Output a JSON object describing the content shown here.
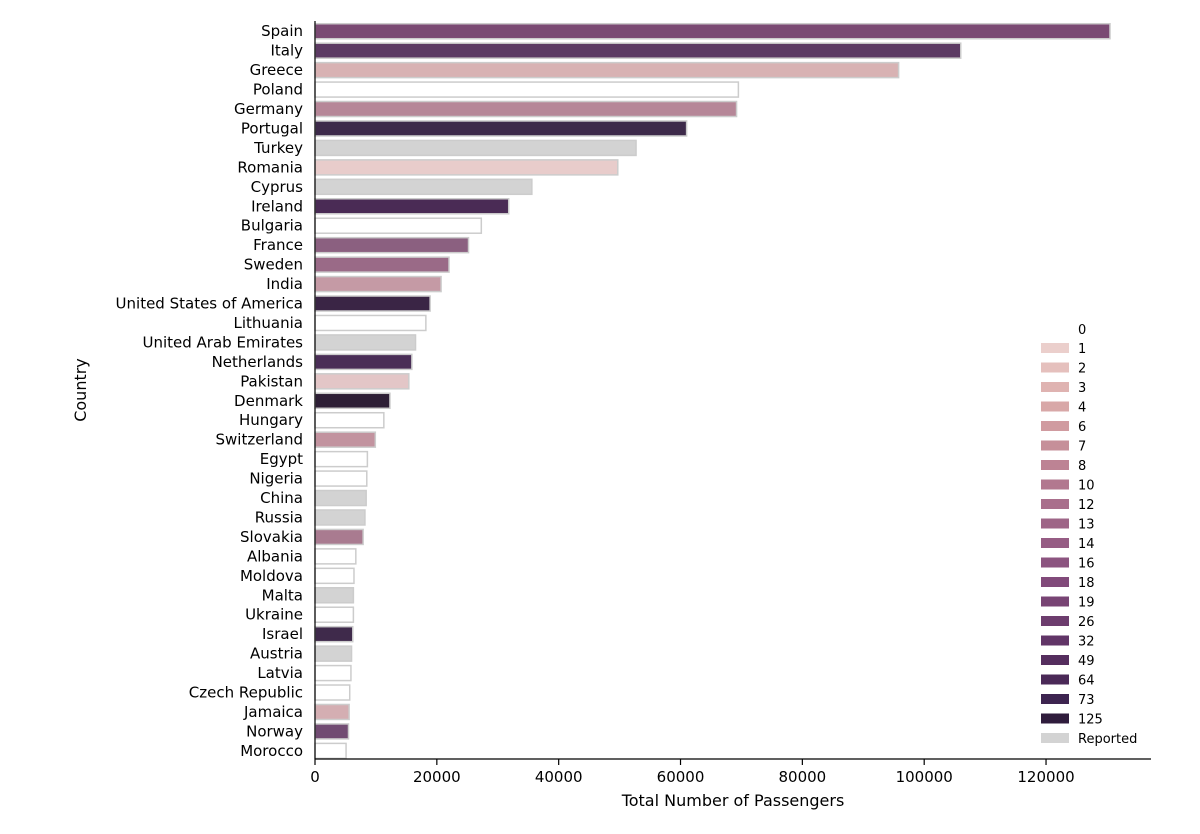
{
  "chart_data": {
    "type": "bar",
    "orientation": "horizontal",
    "xlabel": "Total Number of Passengers",
    "ylabel": "Country",
    "xlim": [
      0,
      137000
    ],
    "xticks": [
      0,
      20000,
      40000,
      60000,
      80000,
      100000,
      120000
    ],
    "grid": false,
    "legend_position": "lower-right",
    "legend_title": "0",
    "reported_color": "#d3d3d3",
    "legend": [
      {
        "label": "1",
        "color": "#ebcfcc"
      },
      {
        "label": "2",
        "color": "#e5c0bd"
      },
      {
        "label": "3",
        "color": "#dfb3b1"
      },
      {
        "label": "4",
        "color": "#d8a8a8"
      },
      {
        "label": "6",
        "color": "#d09ba0"
      },
      {
        "label": "7",
        "color": "#c68f99"
      },
      {
        "label": "8",
        "color": "#bd8394"
      },
      {
        "label": "10",
        "color": "#b2788f"
      },
      {
        "label": "12",
        "color": "#a96f8c"
      },
      {
        "label": "13",
        "color": "#9e6587"
      },
      {
        "label": "14",
        "color": "#965c84"
      },
      {
        "label": "16",
        "color": "#8c5480"
      },
      {
        "label": "18",
        "color": "#814a7a"
      },
      {
        "label": "19",
        "color": "#784474"
      },
      {
        "label": "26",
        "color": "#6d3d6e"
      },
      {
        "label": "32",
        "color": "#613567"
      },
      {
        "label": "49",
        "color": "#552e5e"
      },
      {
        "label": "64",
        "color": "#4a2957"
      },
      {
        "label": "73",
        "color": "#3d2450"
      },
      {
        "label": "125",
        "color": "#2f1c3c"
      },
      {
        "label": "Reported",
        "color": "#d3d3d3"
      }
    ],
    "categories": [
      "Spain",
      "Italy",
      "Greece",
      "Poland",
      "Germany",
      "Portugal",
      "Turkey",
      "Romania",
      "Cyprus",
      "Ireland",
      "Bulgaria",
      "France",
      "Sweden",
      "India",
      "United States of America",
      "Lithuania",
      "United Arab Emirates",
      "Netherlands",
      "Pakistan",
      "Denmark",
      "Hungary",
      "Switzerland",
      "Egypt",
      "Nigeria",
      "China",
      "Russia",
      "Slovakia",
      "Albania",
      "Moldova",
      "Malta",
      "Ukraine",
      "Israel",
      "Austria",
      "Latvia",
      "Czech Republic",
      "Jamaica",
      "Norway",
      "Morocco"
    ],
    "values": [
      130500,
      106000,
      95800,
      69500,
      69200,
      61000,
      52700,
      49700,
      35600,
      31800,
      27300,
      25200,
      22000,
      20700,
      18900,
      18200,
      16500,
      15900,
      15400,
      12300,
      11300,
      9900,
      8600,
      8500,
      8400,
      8200,
      7900,
      6700,
      6400,
      6300,
      6300,
      6200,
      6000,
      5900,
      5700,
      5600,
      5500,
      5100
    ],
    "colors": [
      "#7a4a73",
      "#5c3a63",
      "#d8b2b3",
      "#ffffff",
      "#b68798",
      "#3d2a4a",
      "#d3d3d3",
      "#e8cccb",
      "#d3d3d3",
      "#4a2b55",
      "#ffffff",
      "#8b6080",
      "#9a6a87",
      "#c59aa5",
      "#3a2545",
      "#ffffff",
      "#d3d3d3",
      "#4a2e57",
      "#e3c6c7",
      "#2e1f36",
      "#ffffff",
      "#c2939f",
      "#ffffff",
      "#ffffff",
      "#d3d3d3",
      "#d3d3d3",
      "#a97b90",
      "#ffffff",
      "#ffffff",
      "#d3d3d3",
      "#ffffff",
      "#3f2a4b",
      "#d3d3d3",
      "#ffffff",
      "#ffffff",
      "#d4aeb2",
      "#714b72",
      "#ffffff"
    ]
  }
}
